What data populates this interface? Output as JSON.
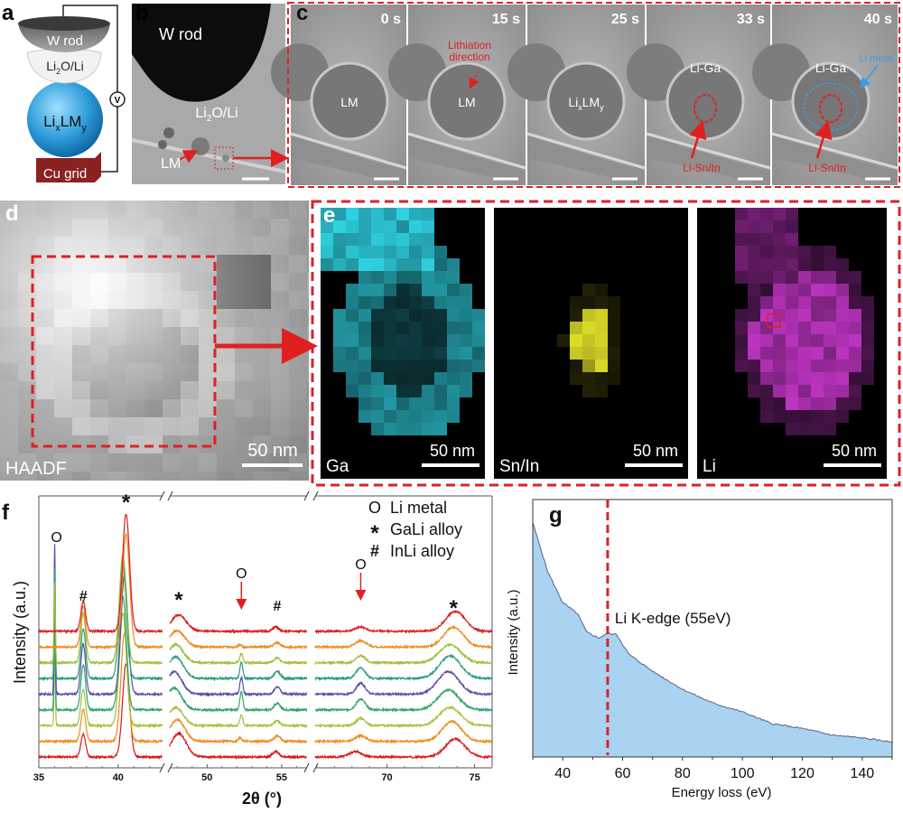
{
  "panels": {
    "a": {
      "label": "a",
      "w_rod": "W rod",
      "li2o": {
        "p1": "Li",
        "sub": "2",
        "p2": "O/Li"
      },
      "lixlmy": {
        "p1": "Li",
        "sub1": "x",
        "p2": "LM",
        "sub2": "y"
      },
      "cu_grid": "Cu grid",
      "voltmeter": "V"
    },
    "b": {
      "label": "b",
      "w_rod": "W rod",
      "li2o": {
        "p1": "Li",
        "sub": "2",
        "p2": "O/Li"
      },
      "lm": "LM"
    },
    "c": {
      "label": "c",
      "frames": [
        {
          "time": "0 s",
          "label": "LM"
        },
        {
          "time": "15 s",
          "label": "LM",
          "annotation": [
            "Lithiation",
            "direction"
          ]
        },
        {
          "time": "25 s",
          "label": {
            "p1": "Li",
            "sub1": "x",
            "p2": "LM",
            "sub2": "y"
          }
        },
        {
          "time": "33 s",
          "label": "Li-Ga",
          "annotation": "Li-Sn/In"
        },
        {
          "time": "40 s",
          "label": "Li-Ga",
          "annotation": "Li-Sn/In",
          "annotation2": "Li metal"
        }
      ]
    },
    "d": {
      "label": "d",
      "name": "HAADF",
      "scale": "50 nm"
    },
    "e": {
      "label": "e",
      "maps": [
        {
          "name": "Ga",
          "scale": "50 nm",
          "color": "#2fd0e0"
        },
        {
          "name": "Sn/In",
          "scale": "50 nm",
          "color": "#e6e62a"
        },
        {
          "name": "Li",
          "scale": "50 nm",
          "color": "#d23ad6"
        }
      ]
    }
  },
  "colors": {
    "dashed_box": "#d9232a",
    "arrow": "#e02020",
    "li_metal": "#3a9ee8"
  },
  "chart_data": [
    {
      "panel": "f",
      "type": "line",
      "xlabel": "2θ (°)",
      "ylabel": "Intensity (a.u.)",
      "broken_axis_segments": [
        [
          35,
          42.8
        ],
        [
          47.5,
          56.7
        ],
        [
          65.9,
          76
        ]
      ],
      "xticks": [
        35,
        40,
        50,
        55,
        70,
        75
      ],
      "legend": [
        {
          "symbol": "O",
          "text": "Li metal"
        },
        {
          "symbol": "*",
          "text": "GaLi alloy"
        },
        {
          "symbol": "#",
          "text": "InLi alloy"
        }
      ],
      "legend_position": "top-right",
      "peak_markers": [
        {
          "symbol": "O",
          "x": 36.0
        },
        {
          "symbol": "#",
          "x": 37.8
        },
        {
          "symbol": "*",
          "x": 40.5
        },
        {
          "symbol": "*",
          "x": 48.1
        },
        {
          "symbol": "O",
          "x": 52.3,
          "arrow": true
        },
        {
          "symbol": "#",
          "x": 54.7
        },
        {
          "symbol": "O",
          "x": 68.5,
          "arrow": true
        },
        {
          "symbol": "*",
          "x": 73.8
        }
      ],
      "series_note_order": "bottom-to-top",
      "series": [
        {
          "color": "#d7191c",
          "peaks": [
            [
              37.8,
              25,
              0.15
            ],
            [
              40.5,
              103,
              0.22
            ],
            [
              48.1,
              26,
              0.5
            ],
            [
              54.6,
              6,
              0.2
            ],
            [
              68.2,
              6,
              0.35
            ],
            [
              73.9,
              20,
              0.55
            ]
          ]
        },
        {
          "color": "#f08a1c",
          "peaks": [
            [
              37.8,
              35,
              0.15
            ],
            [
              40.4,
              120,
              0.22
            ],
            [
              48.0,
              24,
              0.5
            ],
            [
              52.2,
              4,
              0.1
            ],
            [
              54.7,
              6,
              0.2
            ],
            [
              68.5,
              6,
              0.3
            ],
            [
              73.7,
              22,
              0.55
            ]
          ]
        },
        {
          "color": "#a4c23a",
          "peaks": [
            [
              36.0,
              80,
              0.04
            ],
            [
              37.8,
              40,
              0.15
            ],
            [
              40.3,
              125,
              0.22
            ],
            [
              47.9,
              20,
              0.5
            ],
            [
              52.3,
              12,
              0.1
            ],
            [
              54.7,
              5,
              0.2
            ],
            [
              68.5,
              8,
              0.25
            ],
            [
              73.6,
              20,
              0.6
            ]
          ]
        },
        {
          "color": "#2fa36a",
          "peaks": [
            [
              36.0,
              100,
              0.04
            ],
            [
              37.8,
              50,
              0.15
            ],
            [
              40.3,
              125,
              0.22
            ],
            [
              47.8,
              24,
              0.5
            ],
            [
              52.3,
              20,
              0.1
            ],
            [
              54.7,
              7,
              0.2
            ],
            [
              68.5,
              12,
              0.25
            ],
            [
              73.5,
              22,
              0.6
            ]
          ]
        },
        {
          "color": "#5a4fa8",
          "peaks": [
            [
              36.0,
              166,
              0.04
            ],
            [
              37.8,
              55,
              0.15
            ],
            [
              40.4,
              130,
              0.22
            ],
            [
              47.8,
              25,
              0.5
            ],
            [
              52.3,
              18,
              0.1
            ],
            [
              54.7,
              8,
              0.2
            ],
            [
              68.5,
              12,
              0.25
            ],
            [
              73.5,
              25,
              0.6
            ]
          ]
        },
        {
          "color": "#2a9c78",
          "peaks": [
            [
              36.0,
              120,
              0.04
            ],
            [
              37.8,
              55,
              0.15
            ],
            [
              40.3,
              125,
              0.22
            ],
            [
              47.9,
              24,
              0.5
            ],
            [
              52.3,
              18,
              0.1
            ],
            [
              54.7,
              8,
              0.2
            ],
            [
              68.5,
              12,
              0.25
            ],
            [
              73.6,
              25,
              0.6
            ]
          ]
        },
        {
          "color": "#9dbf3a",
          "peaks": [
            [
              36.0,
              90,
              0.04
            ],
            [
              37.8,
              55,
              0.15
            ],
            [
              40.3,
              120,
              0.22
            ],
            [
              47.9,
              20,
              0.5
            ],
            [
              52.3,
              10,
              0.1
            ],
            [
              54.7,
              5,
              0.2
            ],
            [
              68.5,
              8,
              0.25
            ],
            [
              73.6,
              20,
              0.6
            ]
          ]
        },
        {
          "color": "#ee8a20",
          "peaks": [
            [
              37.8,
              45,
              0.15
            ],
            [
              40.5,
              125,
              0.22
            ],
            [
              48.0,
              18,
              0.5
            ],
            [
              52.2,
              3,
              0.1
            ],
            [
              54.7,
              5,
              0.2
            ],
            [
              68.5,
              7,
              0.3
            ],
            [
              73.8,
              22,
              0.55
            ]
          ]
        },
        {
          "color": "#d62020",
          "peaks": [
            [
              37.8,
              33,
              0.15
            ],
            [
              40.5,
              130,
              0.22
            ],
            [
              48.1,
              18,
              0.5
            ],
            [
              54.6,
              5,
              0.2
            ],
            [
              68.5,
              5,
              0.3
            ],
            [
              73.9,
              22,
              0.55
            ]
          ]
        }
      ]
    },
    {
      "panel": "g",
      "type": "area",
      "xlabel": "Energy loss (eV)",
      "ylabel": "Intensity (a.u.)",
      "xlim": [
        30,
        150
      ],
      "xticks": [
        40,
        60,
        80,
        100,
        120,
        140
      ],
      "ylim": [
        0,
        1
      ],
      "fill_color": "#a9d3f0",
      "line_color": "#5b5f8a",
      "x": [
        30,
        35,
        40,
        45,
        48,
        52,
        55,
        58,
        62,
        70,
        80,
        90,
        100,
        110,
        120,
        130,
        140,
        150
      ],
      "y": [
        0.91,
        0.72,
        0.6,
        0.556,
        0.485,
        0.462,
        0.48,
        0.476,
        0.4,
        0.333,
        0.263,
        0.21,
        0.175,
        0.129,
        0.111,
        0.085,
        0.074,
        0.058
      ],
      "annotation": {
        "text": "Li K-edge (55eV)",
        "x": 55,
        "line": "dashed",
        "color": "#d9232a"
      }
    }
  ]
}
